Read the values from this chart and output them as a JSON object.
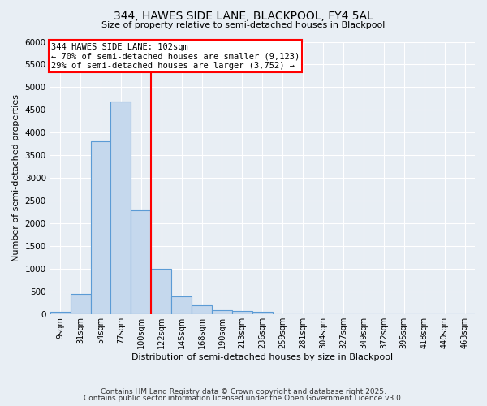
{
  "title1": "344, HAWES SIDE LANE, BLACKPOOL, FY4 5AL",
  "title2": "Size of property relative to semi-detached houses in Blackpool",
  "xlabel": "Distribution of semi-detached houses by size in Blackpool",
  "ylabel": "Number of semi-detached properties",
  "categories": [
    "9sqm",
    "31sqm",
    "54sqm",
    "77sqm",
    "100sqm",
    "122sqm",
    "145sqm",
    "168sqm",
    "190sqm",
    "213sqm",
    "236sqm",
    "259sqm",
    "281sqm",
    "304sqm",
    "327sqm",
    "349sqm",
    "372sqm",
    "395sqm",
    "418sqm",
    "440sqm",
    "463sqm"
  ],
  "values": [
    50,
    450,
    3820,
    4680,
    2300,
    1010,
    400,
    195,
    95,
    80,
    55,
    10,
    5,
    0,
    0,
    0,
    0,
    0,
    0,
    0,
    0
  ],
  "bar_color": "#c5d8ed",
  "bar_edge_color": "#5b9bd5",
  "vline_color": "red",
  "annotation_title": "344 HAWES SIDE LANE: 102sqm",
  "annotation_line2": "← 70% of semi-detached houses are smaller (9,123)",
  "annotation_line3": "29% of semi-detached houses are larger (3,752) →",
  "annotation_box_color": "white",
  "annotation_box_edge": "red",
  "ylim": [
    0,
    6000
  ],
  "yticks": [
    0,
    500,
    1000,
    1500,
    2000,
    2500,
    3000,
    3500,
    4000,
    4500,
    5000,
    5500,
    6000
  ],
  "bg_color": "#e8eef4",
  "footer1": "Contains HM Land Registry data © Crown copyright and database right 2025.",
  "footer2": "Contains public sector information licensed under the Open Government Licence v3.0."
}
